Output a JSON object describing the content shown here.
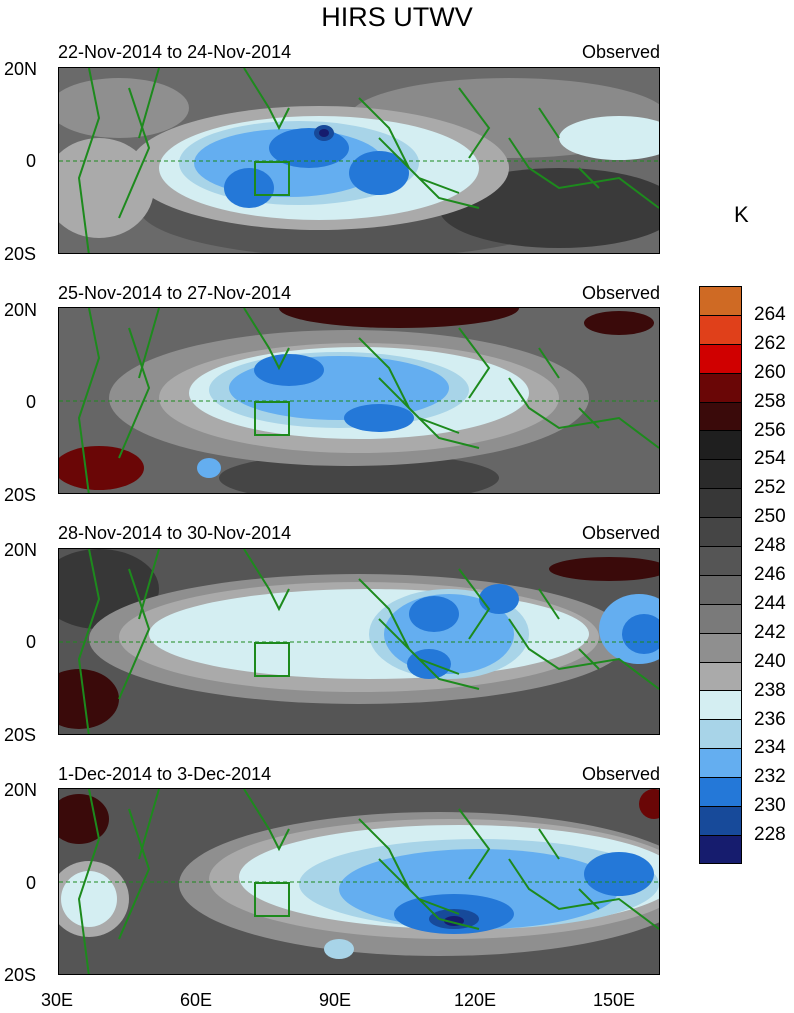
{
  "title": "HIRS UTWV",
  "unit": "K",
  "panels": [
    {
      "date": "22-Nov-2014 to 24-Nov-2014",
      "label": "Observed"
    },
    {
      "date": "25-Nov-2014 to 27-Nov-2014",
      "label": "Observed"
    },
    {
      "date": "28-Nov-2014 to 30-Nov-2014",
      "label": "Observed"
    },
    {
      "date": "1-Dec-2014 to 3-Dec-2014",
      "label": "Observed"
    }
  ],
  "lat_labels": [
    "20N",
    "0",
    "20S"
  ],
  "lon_labels": [
    "30E",
    "60E",
    "90E",
    "120E",
    "150E"
  ],
  "colorbar": {
    "labels": [
      "264",
      "262",
      "260",
      "258",
      "256",
      "254",
      "252",
      "250",
      "248",
      "246",
      "244",
      "242",
      "240",
      "238",
      "236",
      "234",
      "232",
      "230",
      "228"
    ],
    "colors": [
      "#cf6a24",
      "#e0401a",
      "#d00000",
      "#6a0606",
      "#3a0a0a",
      "#1f1f1f",
      "#2a2a2a",
      "#373737",
      "#454545",
      "#555555",
      "#666666",
      "#7a7a7a",
      "#8f8f8f",
      "#aaaaaa",
      "#d4eef2",
      "#a8d4e8",
      "#64aef0",
      "#2478d8",
      "#174a9a",
      "#161c6e"
    ]
  },
  "map": {
    "coastline_color": "#1d8a1d",
    "equator_color": "#1d8a1d",
    "domain_lon": [
      30,
      160
    ],
    "domain_lat": [
      -20,
      20
    ]
  }
}
